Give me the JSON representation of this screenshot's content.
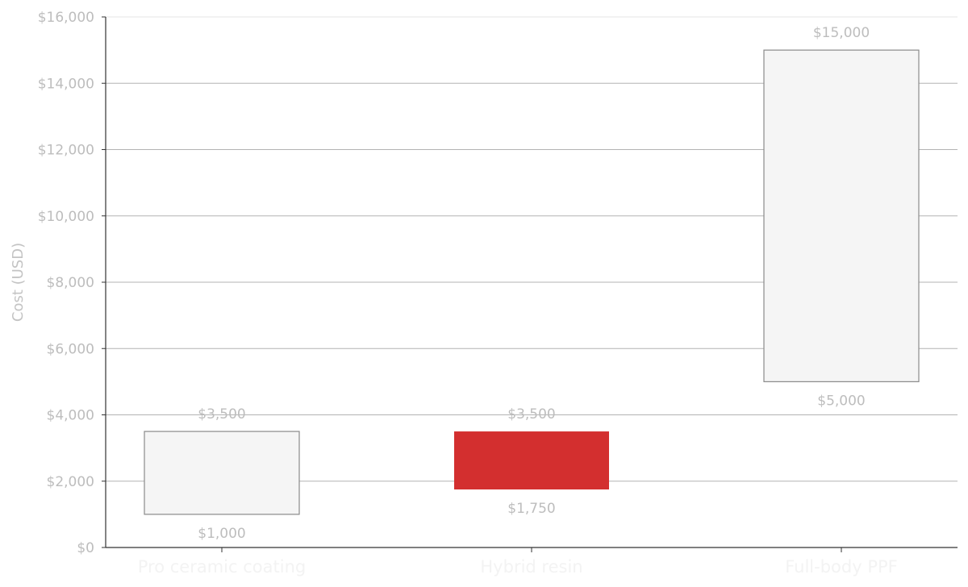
{
  "chart_data": {
    "type": "bar",
    "subtype": "floating-range",
    "title": "",
    "xlabel": "",
    "ylabel": "Cost (USD)",
    "ylim": [
      0,
      16000
    ],
    "yticks": [
      0,
      2000,
      4000,
      6000,
      8000,
      10000,
      12000,
      14000,
      16000
    ],
    "ytick_labels": [
      "$0",
      "$2,000",
      "$4,000",
      "$6,000",
      "$8,000",
      "$10,000",
      "$12,000",
      "$14,000",
      "$16,000"
    ],
    "grid": "horizontal",
    "categories": [
      "Pro ceramic coating",
      "Hybrid resin",
      "Full-body PPF"
    ],
    "ranges": [
      {
        "low": 1000,
        "high": 3500,
        "low_label": "$1,000",
        "high_label": "$3,500",
        "highlight": false
      },
      {
        "low": 1750,
        "high": 3500,
        "low_label": "$1,750",
        "high_label": "$3,500",
        "highlight": true
      },
      {
        "low": 5000,
        "high": 15000,
        "low_label": "$5,000",
        "high_label": "$15,000",
        "highlight": false
      }
    ],
    "colors": {
      "default_fill": "#f5f5f5",
      "default_stroke": "#8a8a8a",
      "highlight_fill": "#d32f2f",
      "grid": "#b3b3b3",
      "axis": "#333333"
    }
  }
}
